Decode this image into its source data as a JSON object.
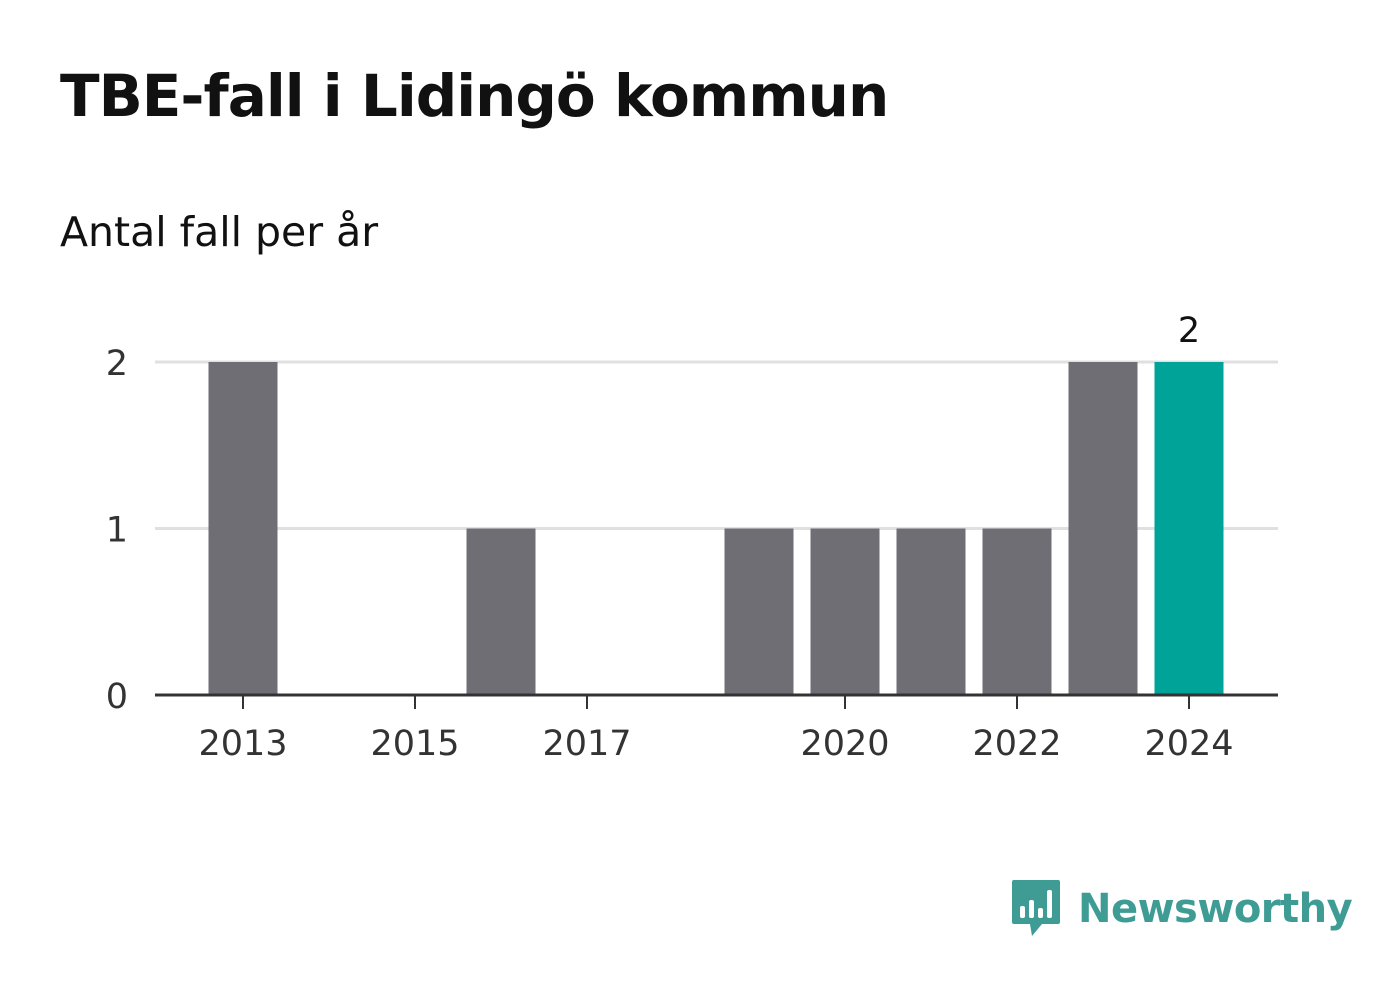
{
  "title": "TBE-fall i Lidingö kommun",
  "subtitle": "Antal fall per år",
  "brand": {
    "name": "Newsworthy",
    "icon": "newsworthy-logo-icon",
    "color": "#3f9c95"
  },
  "chart_data": {
    "type": "bar",
    "categories": [
      "2013",
      "2014",
      "2015",
      "2016",
      "2017",
      "2018",
      "2019",
      "2020",
      "2021",
      "2022",
      "2023",
      "2024"
    ],
    "values": [
      2,
      0,
      0,
      1,
      0,
      0,
      1,
      1,
      1,
      1,
      2,
      2
    ],
    "x_tick_labels": [
      "2013",
      "2015",
      "2017",
      "2020",
      "2022",
      "2024"
    ],
    "y_ticks": [
      0,
      1,
      2
    ],
    "ylim": [
      0,
      2
    ],
    "xlabel": "",
    "ylabel": "",
    "grid": true,
    "highlight": {
      "category": "2024",
      "label": "2"
    },
    "colors": {
      "bar": "#6f6e74",
      "highlight": "#00a398",
      "grid": "#e0e0e0",
      "axis": "#333333",
      "tick_text": "#333333"
    }
  }
}
